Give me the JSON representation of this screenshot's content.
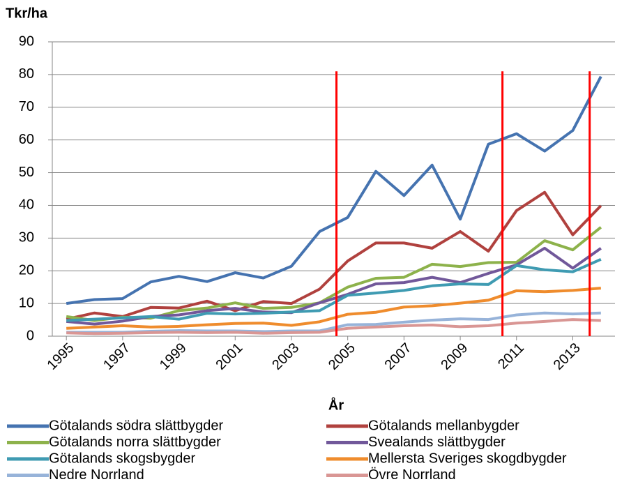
{
  "chart_data": {
    "type": "line",
    "y_label": "Tkr/ha",
    "x_label": "År",
    "x": [
      1995,
      1996,
      1997,
      1998,
      1999,
      2000,
      2001,
      2002,
      2003,
      2004,
      2005,
      2006,
      2007,
      2008,
      2009,
      2010,
      2011,
      2012,
      2013,
      2014
    ],
    "xlim": [
      1994.5,
      2014.5
    ],
    "xticks": [
      1995,
      1997,
      1999,
      2001,
      2003,
      2005,
      2007,
      2009,
      2011,
      2013
    ],
    "ylim": [
      0,
      90
    ],
    "yticks": [
      0,
      10,
      20,
      30,
      40,
      50,
      60,
      70,
      80,
      90
    ],
    "grid": true,
    "series": [
      {
        "name": "Götalands södra slättbygder",
        "color": "#4573b0",
        "values": [
          10,
          11.2,
          11.5,
          16.6,
          18.3,
          16.7,
          19.4,
          17.8,
          21.4,
          32,
          36.3,
          50.4,
          43,
          52.3,
          35.8,
          58.7,
          61.9,
          56.6,
          62.9,
          79.4
        ]
      },
      {
        "name": "Götalands mellanbygder",
        "color": "#b0413e",
        "values": [
          5.2,
          7.1,
          6,
          8.8,
          8.6,
          10.7,
          7.8,
          10.6,
          10,
          14.4,
          23,
          28.5,
          28.5,
          26.9,
          32,
          26,
          38.4,
          44,
          31,
          39.9
        ]
      },
      {
        "name": "Götalands norra slättbygder",
        "color": "#8db24b",
        "values": [
          6,
          4.8,
          5.8,
          5.5,
          7.8,
          8.6,
          10.2,
          8.5,
          8.8,
          10.2,
          15,
          17.7,
          18,
          22,
          21.3,
          22.5,
          22.6,
          29.2,
          26.4,
          33.3
        ]
      },
      {
        "name": "Svealands slättbygder",
        "color": "#71589a",
        "values": [
          4.5,
          3.7,
          4.6,
          6,
          6.5,
          7.8,
          8.5,
          7.4,
          7.2,
          10.2,
          12.8,
          16,
          16.4,
          18,
          16.4,
          19.2,
          21.8,
          26.9,
          20.8,
          26.9
        ]
      },
      {
        "name": "Götalands skogsbygder",
        "color": "#3f9bb2",
        "values": [
          4.8,
          5.2,
          5.6,
          6,
          5.2,
          7,
          6.8,
          7,
          7.4,
          7.8,
          12.5,
          13.2,
          14,
          15.4,
          16,
          15.8,
          21.6,
          20.3,
          19.7,
          23.5
        ]
      },
      {
        "name": "Mellersta Sveriges skogdbygder",
        "color": "#ef8c2d",
        "values": [
          2.4,
          2.8,
          3.2,
          2.8,
          3,
          3.5,
          3.9,
          4,
          3.3,
          4.4,
          6.7,
          7.3,
          8.9,
          9.3,
          10.1,
          11,
          13.9,
          13.6,
          14,
          14.7
        ]
      },
      {
        "name": "Nedre Norrland",
        "color": "#97b3d9",
        "values": [
          1.2,
          1.2,
          1.2,
          1.5,
          1.7,
          1.6,
          1.6,
          1.4,
          1.6,
          1.6,
          3.5,
          3.6,
          4.3,
          4.9,
          5.3,
          5.1,
          6.5,
          7.1,
          6.8,
          7.1
        ]
      },
      {
        "name": "Övre Norrland",
        "color": "#d99694",
        "values": [
          1,
          0.8,
          0.9,
          1.1,
          1.2,
          1.1,
          1.2,
          0.9,
          1.1,
          1.2,
          2.4,
          2.8,
          3.2,
          3.4,
          2.9,
          3.2,
          4,
          4.5,
          5.1,
          4.8
        ]
      }
    ],
    "vlines": {
      "color": "#ff0000",
      "x": [
        2004.6,
        2010.5,
        2013.6
      ],
      "top": 81
    }
  }
}
